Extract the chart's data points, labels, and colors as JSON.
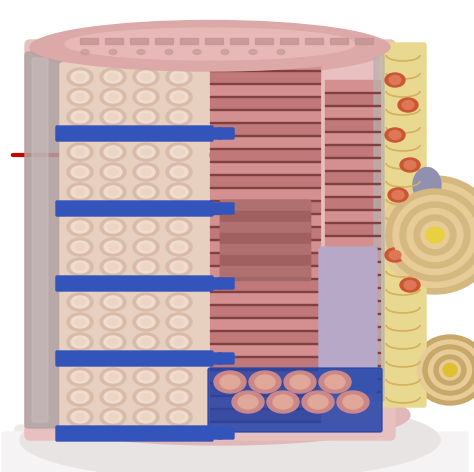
{
  "bg_color": "#ffffff",
  "platform_color": "#d8c8c8",
  "platform_base": "#e8e0e0",
  "body_pink": "#e0aaaa",
  "body_pink_light": "#ecc8c8",
  "fascia_gray": "#b8a8a8",
  "bundle_cream": "#e8d0c0",
  "bundle_pink": "#d8a898",
  "pore_light": "#f0ddd0",
  "pore_inner": "#e8c8b8",
  "blue_sr": "#3355bb",
  "blue_sr_light": "#5577cc",
  "blue_net": "#2244aa",
  "striation_dark": "#c07878",
  "striation_med": "#d49090",
  "striation_light": "#e0b0a0",
  "z_line": "#804040",
  "contracted_dark": "#a06868",
  "right_tissue_yellow": "#e8d890",
  "right_tissue_cream": "#e0c890",
  "right_tissue_wavy": "#d4b060",
  "right_tissue_gray": "#c0b8b0",
  "mito_red": "#cc5533",
  "lavender": "#b8a8c8",
  "lavender_dark": "#9888b0",
  "tan_nerve": "#d4b880",
  "tan_nerve_dark": "#c0a060",
  "tan_nerve_light": "#e8cc98",
  "nerve_yellow": "#e8d040",
  "nerve_tan2": "#c8a868",
  "nerve_purple": "#9090b0",
  "nerve_bottom_tan": "#c8a878",
  "top_pink": "#d8a0a0",
  "top_dark_pink": "#c09090",
  "arrow_red": "#cc0000",
  "white": "#ffffff"
}
